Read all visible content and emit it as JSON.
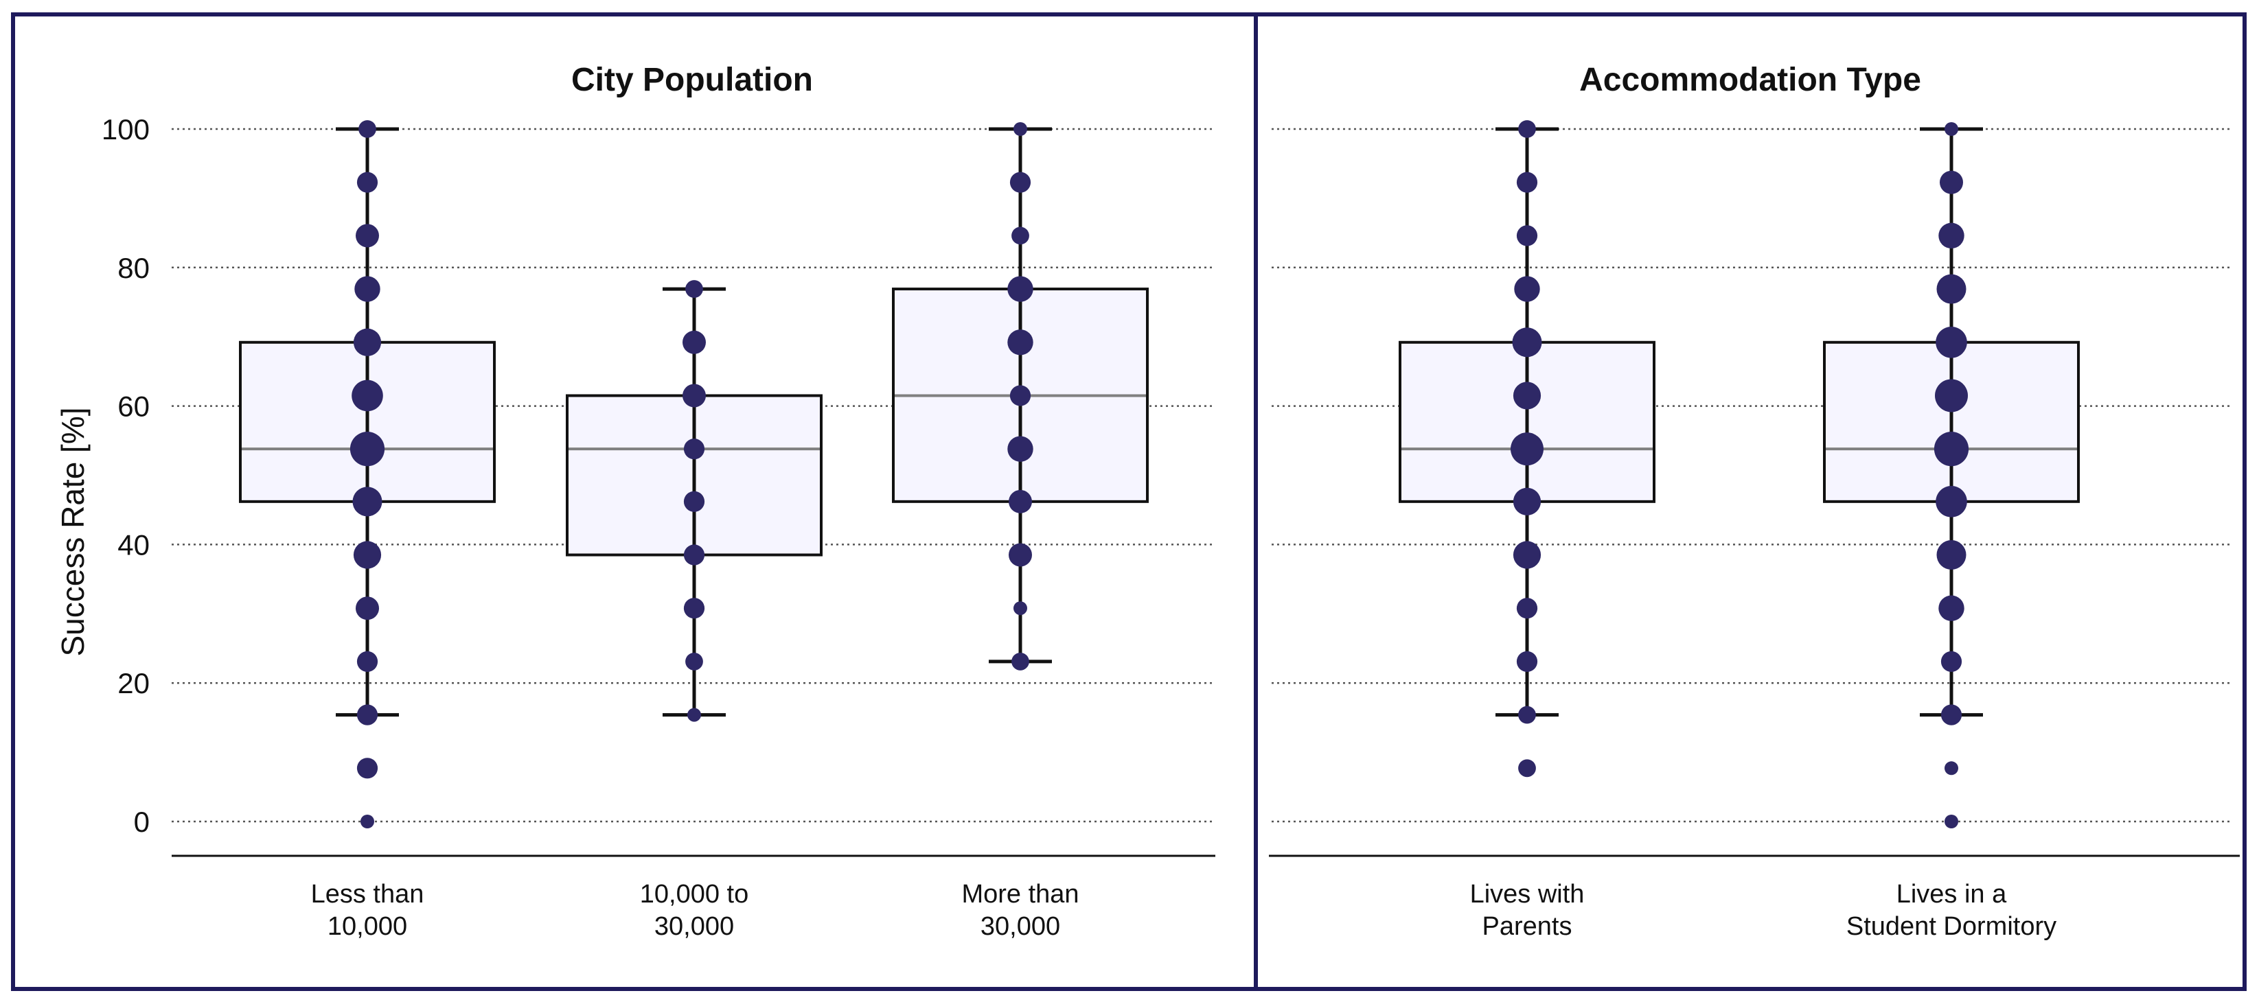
{
  "chart_data": [
    {
      "type": "boxplot",
      "title": "City Population",
      "ylabel": "Success Rate [%]",
      "xlabel": "",
      "ylim": [
        0,
        100
      ],
      "yticks": [
        0,
        20,
        40,
        60,
        80,
        100
      ],
      "grid": "horizontal-dotted",
      "categories": [
        {
          "label_lines": [
            "Less than",
            "10,000"
          ],
          "q1": 46.2,
          "median": 53.8,
          "q3": 69.2,
          "whisker_low": 15.4,
          "whisker_high": 100,
          "points": [
            {
              "y": 0,
              "n": 1
            },
            {
              "y": 7.7,
              "n": 3
            },
            {
              "y": 15.4,
              "n": 3
            },
            {
              "y": 23.1,
              "n": 3
            },
            {
              "y": 30.8,
              "n": 4
            },
            {
              "y": 38.5,
              "n": 6
            },
            {
              "y": 46.2,
              "n": 7
            },
            {
              "y": 53.8,
              "n": 10
            },
            {
              "y": 61.5,
              "n": 8
            },
            {
              "y": 69.2,
              "n": 6
            },
            {
              "y": 76.9,
              "n": 5
            },
            {
              "y": 84.6,
              "n": 4
            },
            {
              "y": 92.3,
              "n": 3
            },
            {
              "y": 100,
              "n": 2
            }
          ]
        },
        {
          "label_lines": [
            "10,000 to",
            "30,000"
          ],
          "q1": 38.5,
          "median": 53.8,
          "q3": 61.5,
          "whisker_low": 15.4,
          "whisker_high": 76.9,
          "points": [
            {
              "y": 15.4,
              "n": 1
            },
            {
              "y": 23.1,
              "n": 2
            },
            {
              "y": 30.8,
              "n": 3
            },
            {
              "y": 38.5,
              "n": 3
            },
            {
              "y": 46.2,
              "n": 3
            },
            {
              "y": 53.8,
              "n": 3
            },
            {
              "y": 61.5,
              "n": 4
            },
            {
              "y": 69.2,
              "n": 4
            },
            {
              "y": 76.9,
              "n": 2
            }
          ]
        },
        {
          "label_lines": [
            "More than",
            "30,000"
          ],
          "q1": 46.2,
          "median": 61.5,
          "q3": 76.9,
          "whisker_low": 23.1,
          "whisker_high": 100,
          "points": [
            {
              "y": 23.1,
              "n": 2
            },
            {
              "y": 30.8,
              "n": 1
            },
            {
              "y": 38.5,
              "n": 4
            },
            {
              "y": 46.2,
              "n": 4
            },
            {
              "y": 53.8,
              "n": 5
            },
            {
              "y": 61.5,
              "n": 3
            },
            {
              "y": 69.2,
              "n": 5
            },
            {
              "y": 76.9,
              "n": 5
            },
            {
              "y": 84.6,
              "n": 2
            },
            {
              "y": 92.3,
              "n": 3
            },
            {
              "y": 100,
              "n": 1
            }
          ]
        }
      ]
    },
    {
      "type": "boxplot",
      "title": "Accommodation Type",
      "ylim": [
        0,
        100
      ],
      "yticks": [
        0,
        20,
        40,
        60,
        80,
        100
      ],
      "grid": "horizontal-dotted",
      "categories": [
        {
          "label_lines": [
            "Lives with",
            "Parents"
          ],
          "q1": 46.2,
          "median": 53.8,
          "q3": 69.2,
          "whisker_low": 15.4,
          "whisker_high": 100,
          "points": [
            {
              "y": 7.7,
              "n": 2
            },
            {
              "y": 15.4,
              "n": 2
            },
            {
              "y": 23.1,
              "n": 3
            },
            {
              "y": 30.8,
              "n": 3
            },
            {
              "y": 38.5,
              "n": 6
            },
            {
              "y": 46.2,
              "n": 6
            },
            {
              "y": 53.8,
              "n": 9
            },
            {
              "y": 61.5,
              "n": 6
            },
            {
              "y": 69.2,
              "n": 7
            },
            {
              "y": 76.9,
              "n": 5
            },
            {
              "y": 84.6,
              "n": 3
            },
            {
              "y": 92.3,
              "n": 3
            },
            {
              "y": 100,
              "n": 2
            }
          ]
        },
        {
          "label_lines": [
            "Lives in a",
            "Student Dormitory"
          ],
          "q1": 46.2,
          "median": 53.8,
          "q3": 69.2,
          "whisker_low": 15.4,
          "whisker_high": 100,
          "points": [
            {
              "y": 0,
              "n": 1
            },
            {
              "y": 7.7,
              "n": 1
            },
            {
              "y": 15.4,
              "n": 3
            },
            {
              "y": 23.1,
              "n": 3
            },
            {
              "y": 30.8,
              "n": 5
            },
            {
              "y": 38.5,
              "n": 7
            },
            {
              "y": 46.2,
              "n": 8
            },
            {
              "y": 53.8,
              "n": 10
            },
            {
              "y": 61.5,
              "n": 9
            },
            {
              "y": 69.2,
              "n": 8
            },
            {
              "y": 76.9,
              "n": 7
            },
            {
              "y": 84.6,
              "n": 5
            },
            {
              "y": 92.3,
              "n": 4
            },
            {
              "y": 100,
              "n": 1
            }
          ]
        }
      ]
    }
  ]
}
